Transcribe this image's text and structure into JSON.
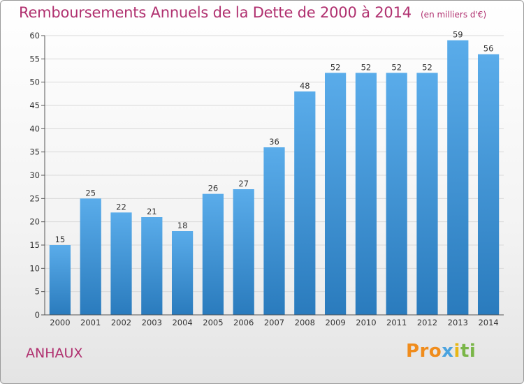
{
  "chart_data": {
    "type": "bar",
    "title": "Remboursements Annuels de la Dette de 2000 à 2014",
    "unit": "(en milliers d'€)",
    "categories": [
      "2000",
      "2001",
      "2002",
      "2003",
      "2004",
      "2005",
      "2006",
      "2007",
      "2008",
      "2009",
      "2010",
      "2011",
      "2012",
      "2013",
      "2014"
    ],
    "values": [
      15,
      25,
      22,
      21,
      18,
      26,
      27,
      36,
      48,
      52,
      52,
      52,
      52,
      59,
      56
    ],
    "ylim": [
      0,
      60
    ],
    "yticks": [
      0,
      5,
      10,
      15,
      20,
      25,
      30,
      35,
      40,
      45,
      50,
      55,
      60
    ],
    "grid": true,
    "bar_color_top": "#5aacea",
    "bar_color_bottom": "#2a7bbd"
  },
  "commune": "ANHAUX",
  "logo": {
    "p1": "Pro",
    "p2": "x",
    "p3": "i",
    "p4": "ti"
  }
}
